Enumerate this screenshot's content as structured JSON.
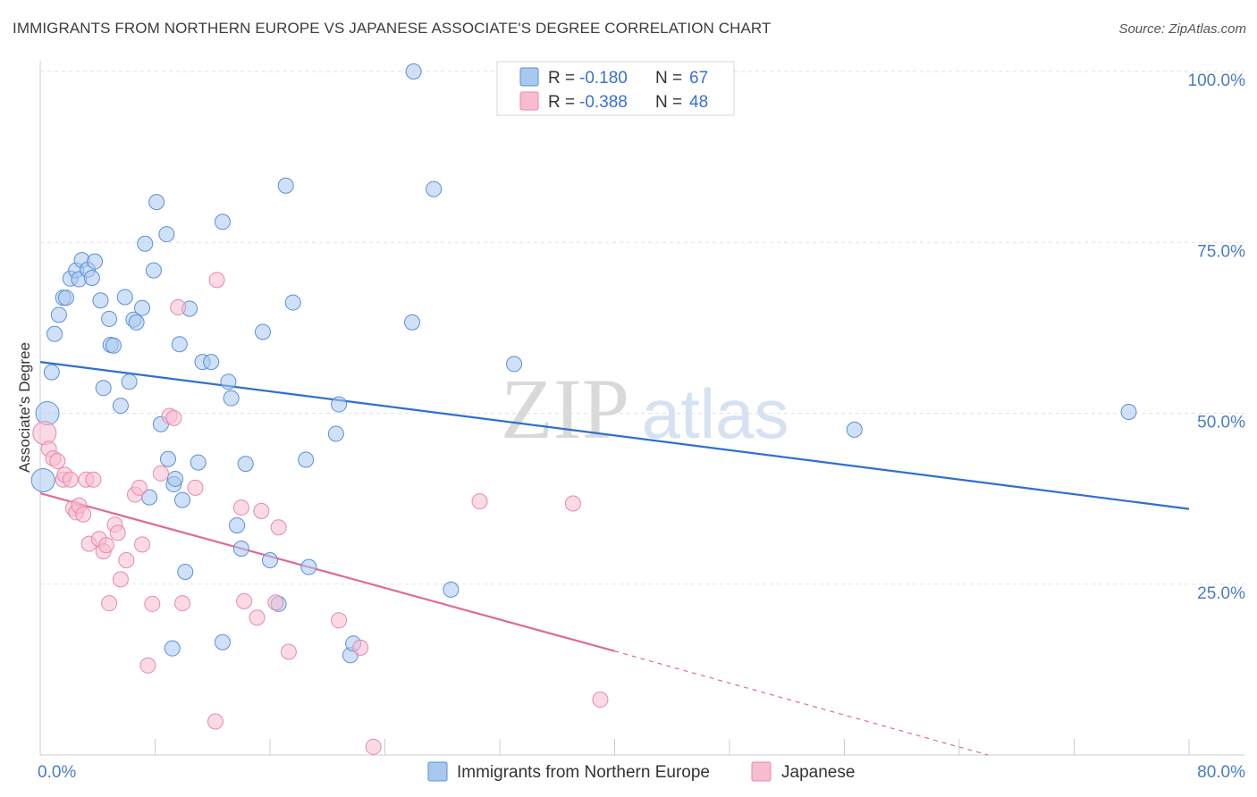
{
  "chart_data": {
    "type": "scatter",
    "title": "IMMIGRANTS FROM NORTHERN EUROPE VS JAPANESE ASSOCIATE'S DEGREE CORRELATION CHART",
    "source": "Source: ZipAtlas.com",
    "ylabel": "Associate's Degree",
    "xlabel": "",
    "xlim": [
      0,
      80
    ],
    "ylim": [
      0,
      100
    ],
    "x_tick_labels": [
      {
        "value": 0,
        "label": "0.0%"
      },
      {
        "value": 80,
        "label": "80.0%"
      }
    ],
    "y_tick_labels": [
      {
        "value": 25,
        "label": "25.0%"
      },
      {
        "value": 50,
        "label": "50.0%"
      },
      {
        "value": 75,
        "label": "75.0%"
      },
      {
        "value": 100,
        "label": "100.0%"
      }
    ],
    "watermark": {
      "zip": "ZIP",
      "atlas": "atlas"
    },
    "colors": {
      "blue_fill": "#a9c8f0",
      "blue_stroke": "#5b8fd6",
      "blue_line": "#2f6fd0",
      "pink_fill": "#f7bcd0",
      "pink_stroke": "#e58aab",
      "pink_line": "#e06a96",
      "axis_label": "#4a7cc9",
      "grid": "#e2e2e2"
    },
    "legend": [
      {
        "r_label": "R =",
        "r_value": "-0.180",
        "n_label": "N =",
        "n_value": "67"
      },
      {
        "r_label": "R =",
        "r_value": "-0.388",
        "n_label": "N =",
        "n_value": "48"
      }
    ],
    "series": [
      {
        "name": "Immigrants from Northern Europe",
        "color": "#a9c8f0",
        "trend": {
          "x0": 0,
          "y0": 57.5,
          "x1": 80,
          "y1": 36.0
        },
        "points": [
          [
            0.2,
            40.2
          ],
          [
            0.5,
            50.0
          ],
          [
            0.8,
            56.0
          ],
          [
            1.0,
            61.6
          ],
          [
            1.3,
            64.4
          ],
          [
            1.6,
            66.9
          ],
          [
            1.8,
            66.9
          ],
          [
            2.1,
            69.7
          ],
          [
            2.5,
            70.9
          ],
          [
            2.7,
            69.6
          ],
          [
            2.9,
            72.4
          ],
          [
            3.3,
            71.0
          ],
          [
            3.6,
            69.8
          ],
          [
            3.8,
            72.2
          ],
          [
            4.2,
            66.5
          ],
          [
            4.4,
            53.7
          ],
          [
            4.8,
            63.8
          ],
          [
            4.9,
            60.0
          ],
          [
            5.1,
            59.9
          ],
          [
            5.6,
            51.1
          ],
          [
            5.9,
            67.0
          ],
          [
            6.2,
            54.6
          ],
          [
            6.5,
            63.7
          ],
          [
            6.7,
            63.3
          ],
          [
            7.1,
            65.4
          ],
          [
            7.3,
            74.8
          ],
          [
            7.6,
            37.7
          ],
          [
            7.9,
            70.9
          ],
          [
            8.1,
            80.9
          ],
          [
            8.4,
            48.4
          ],
          [
            8.8,
            76.2
          ],
          [
            8.9,
            43.3
          ],
          [
            9.3,
            39.6
          ],
          [
            9.4,
            40.4
          ],
          [
            9.7,
            60.1
          ],
          [
            9.9,
            37.3
          ],
          [
            10.1,
            26.8
          ],
          [
            10.4,
            65.3
          ],
          [
            11.0,
            42.8
          ],
          [
            11.3,
            57.5
          ],
          [
            11.9,
            57.5
          ],
          [
            12.7,
            78.0
          ],
          [
            13.1,
            54.6
          ],
          [
            13.3,
            52.2
          ],
          [
            13.7,
            33.6
          ],
          [
            14.0,
            30.2
          ],
          [
            14.3,
            42.6
          ],
          [
            15.5,
            61.9
          ],
          [
            16.0,
            28.5
          ],
          [
            16.6,
            22.1
          ],
          [
            17.1,
            83.3
          ],
          [
            17.6,
            66.2
          ],
          [
            18.5,
            43.2
          ],
          [
            18.7,
            27.5
          ],
          [
            20.6,
            47.0
          ],
          [
            20.8,
            51.3
          ],
          [
            21.6,
            14.6
          ],
          [
            21.8,
            16.3
          ],
          [
            9.2,
            15.6
          ],
          [
            12.7,
            16.5
          ],
          [
            25.9,
            63.3
          ],
          [
            26.0,
            100.0
          ],
          [
            27.4,
            82.8
          ],
          [
            28.6,
            24.2
          ],
          [
            33.0,
            57.2
          ],
          [
            56.7,
            47.6
          ],
          [
            75.8,
            50.2
          ]
        ]
      },
      {
        "name": "Japanese",
        "color": "#f7bcd0",
        "trend": {
          "x0": 0,
          "y0": 38.3,
          "x1": 40,
          "y1": 15.2
        },
        "trend_dashed": {
          "x0": 40,
          "y0": 15.2,
          "x1": 66,
          "y1": 0.0
        },
        "points": [
          [
            0.3,
            47.1
          ],
          [
            0.6,
            44.8
          ],
          [
            0.9,
            43.4
          ],
          [
            1.2,
            43.0
          ],
          [
            1.6,
            40.3
          ],
          [
            1.7,
            41.0
          ],
          [
            2.1,
            40.3
          ],
          [
            2.3,
            36.1
          ],
          [
            2.5,
            35.5
          ],
          [
            2.7,
            36.5
          ],
          [
            3.0,
            35.2
          ],
          [
            3.2,
            40.3
          ],
          [
            3.4,
            30.9
          ],
          [
            3.7,
            40.3
          ],
          [
            4.1,
            31.6
          ],
          [
            4.4,
            29.8
          ],
          [
            4.6,
            30.7
          ],
          [
            4.8,
            22.2
          ],
          [
            5.2,
            33.7
          ],
          [
            5.4,
            32.5
          ],
          [
            5.6,
            25.7
          ],
          [
            6.0,
            28.5
          ],
          [
            6.6,
            38.1
          ],
          [
            6.9,
            39.1
          ],
          [
            7.1,
            30.8
          ],
          [
            7.5,
            13.1
          ],
          [
            7.8,
            22.1
          ],
          [
            8.4,
            41.2
          ],
          [
            9.0,
            49.6
          ],
          [
            9.3,
            49.3
          ],
          [
            9.6,
            65.5
          ],
          [
            9.9,
            22.2
          ],
          [
            10.8,
            39.1
          ],
          [
            12.3,
            69.5
          ],
          [
            12.2,
            4.9
          ],
          [
            14.0,
            36.2
          ],
          [
            14.2,
            22.5
          ],
          [
            15.1,
            20.1
          ],
          [
            15.4,
            35.7
          ],
          [
            16.4,
            22.3
          ],
          [
            16.6,
            33.3
          ],
          [
            17.3,
            15.1
          ],
          [
            20.8,
            19.7
          ],
          [
            22.3,
            15.7
          ],
          [
            23.2,
            1.2
          ],
          [
            30.6,
            37.1
          ],
          [
            37.1,
            36.8
          ],
          [
            39.0,
            8.1
          ]
        ]
      }
    ]
  }
}
